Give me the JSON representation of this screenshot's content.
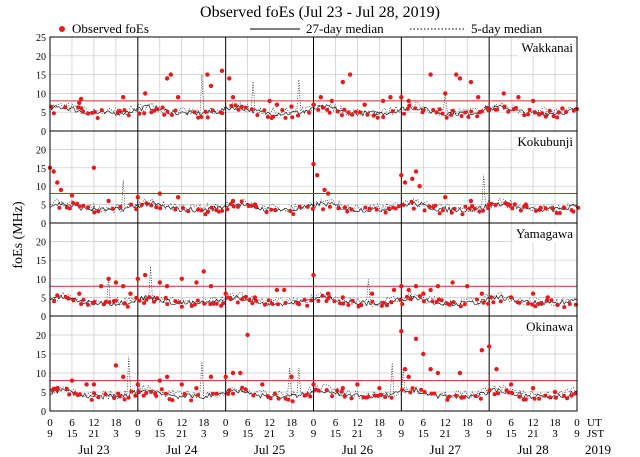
{
  "chart_data": {
    "type": "scatter",
    "title": "Observed foEs (Jul 23 - Jul 28, 2019)",
    "ylabel": "foEs (MHz)",
    "ylim": [
      0,
      25
    ],
    "yticks": [
      0,
      5,
      10,
      15,
      20,
      25
    ],
    "grid": true,
    "legend": [
      {
        "name": "Observed foEs",
        "style": "dot",
        "color": "#e8191e"
      },
      {
        "name": "27-day median",
        "style": "solid-line",
        "color": "#000000"
      },
      {
        "name": "5-day median",
        "style": "dotted-line",
        "color": "#000000"
      }
    ],
    "x_axis": {
      "range_hours_ut": [
        0,
        144
      ],
      "ut_label": "UT",
      "jst_label": "JST",
      "year": "2019",
      "ut_ticks": [
        "0",
        "6",
        "12",
        "18",
        "0",
        "6",
        "12",
        "18",
        "0",
        "6",
        "12",
        "18",
        "0",
        "6",
        "12",
        "18",
        "0",
        "6",
        "12",
        "18",
        "0",
        "6",
        "12",
        "18",
        "0"
      ],
      "jst_ticks": [
        "9",
        "15",
        "21",
        "3",
        "9",
        "15",
        "21",
        "3",
        "9",
        "15",
        "21",
        "3",
        "9",
        "15",
        "21",
        "3",
        "9",
        "15",
        "21",
        "3",
        "9",
        "15",
        "21",
        "3",
        "9"
      ],
      "day_labels": [
        "Jul 23",
        "Jul 24",
        "Jul 25",
        "Jul 26",
        "Jul 27",
        "Jul 28"
      ]
    },
    "reference_line_value": 8,
    "colors": {
      "observed": "#e8191e",
      "reference": "#d42a2a",
      "grid": "#c8c8c8"
    },
    "stations": [
      {
        "name": "Wakkanai",
        "median27": 5.3,
        "median5": 5.6,
        "observed": [
          [
            8,
            7.5
          ],
          [
            8.5,
            8.5
          ],
          [
            20,
            9
          ],
          [
            26,
            10
          ],
          [
            32,
            14
          ],
          [
            33,
            15
          ],
          [
            35,
            9
          ],
          [
            43,
            15
          ],
          [
            44,
            12
          ],
          [
            47,
            16
          ],
          [
            49,
            14
          ],
          [
            50,
            9
          ],
          [
            60,
            8
          ],
          [
            62,
            7
          ],
          [
            66,
            6.5
          ],
          [
            72,
            7
          ],
          [
            74,
            9
          ],
          [
            77,
            8
          ],
          [
            80,
            13
          ],
          [
            82,
            15
          ],
          [
            86,
            7
          ],
          [
            91,
            8
          ],
          [
            93,
            9
          ],
          [
            96,
            9
          ],
          [
            98,
            8
          ],
          [
            104,
            15
          ],
          [
            108,
            10
          ],
          [
            111,
            15
          ],
          [
            112,
            14
          ],
          [
            115,
            13
          ],
          [
            117,
            9
          ],
          [
            124,
            10
          ],
          [
            128,
            9
          ],
          [
            132,
            8
          ],
          [
            140,
            6
          ]
        ]
      },
      {
        "name": "Kokubunji",
        "median27": 4.2,
        "median5": 4.6,
        "observed": [
          [
            0,
            15
          ],
          [
            1,
            14
          ],
          [
            2,
            11
          ],
          [
            3,
            9
          ],
          [
            6,
            7.5
          ],
          [
            12,
            15
          ],
          [
            16,
            6
          ],
          [
            24,
            7
          ],
          [
            30,
            8
          ],
          [
            35,
            7
          ],
          [
            50,
            6
          ],
          [
            56,
            5
          ],
          [
            72,
            16
          ],
          [
            73,
            13
          ],
          [
            75,
            9
          ],
          [
            76,
            8
          ],
          [
            96,
            13
          ],
          [
            97,
            11
          ],
          [
            99,
            12
          ],
          [
            100,
            14
          ],
          [
            101,
            10
          ],
          [
            108,
            7
          ],
          [
            115,
            6
          ],
          [
            120,
            5
          ],
          [
            125,
            5
          ],
          [
            130,
            5
          ]
        ]
      },
      {
        "name": "Yamagawa",
        "median27": 4.0,
        "median5": 4.3,
        "observed": [
          [
            2,
            5.5
          ],
          [
            8,
            6
          ],
          [
            14,
            8
          ],
          [
            16,
            10
          ],
          [
            18,
            9
          ],
          [
            20,
            8
          ],
          [
            22,
            6
          ],
          [
            24,
            10
          ],
          [
            26,
            11
          ],
          [
            30,
            9
          ],
          [
            32,
            8
          ],
          [
            36,
            10
          ],
          [
            40,
            9
          ],
          [
            42,
            12
          ],
          [
            44,
            8
          ],
          [
            48,
            6
          ],
          [
            56,
            5
          ],
          [
            62,
            7
          ],
          [
            64,
            7
          ],
          [
            72,
            11
          ],
          [
            76,
            6
          ],
          [
            80,
            5
          ],
          [
            88,
            6
          ],
          [
            94,
            7
          ],
          [
            96,
            8
          ],
          [
            98,
            7
          ],
          [
            100,
            8
          ],
          [
            102,
            6
          ],
          [
            104,
            7
          ],
          [
            106,
            8
          ],
          [
            110,
            9
          ],
          [
            114,
            8
          ],
          [
            118,
            6
          ],
          [
            126,
            5
          ],
          [
            132,
            6
          ],
          [
            136,
            5
          ]
        ]
      },
      {
        "name": "Okinawa",
        "median27": 4.4,
        "median5": 4.8,
        "observed": [
          [
            2,
            6
          ],
          [
            6,
            8
          ],
          [
            10,
            7
          ],
          [
            12,
            7
          ],
          [
            18,
            12
          ],
          [
            20,
            9
          ],
          [
            24,
            7
          ],
          [
            30,
            8
          ],
          [
            32,
            9
          ],
          [
            36,
            7
          ],
          [
            40,
            6
          ],
          [
            44,
            9
          ],
          [
            48,
            9
          ],
          [
            50,
            10
          ],
          [
            52,
            10
          ],
          [
            54,
            20
          ],
          [
            58,
            7
          ],
          [
            66,
            9
          ],
          [
            72,
            7
          ],
          [
            80,
            6
          ],
          [
            84,
            7
          ],
          [
            90,
            6
          ],
          [
            96,
            21
          ],
          [
            97,
            11
          ],
          [
            98,
            9
          ],
          [
            100,
            19
          ],
          [
            102,
            15
          ],
          [
            104,
            11
          ],
          [
            106,
            10
          ],
          [
            112,
            10
          ],
          [
            118,
            16
          ],
          [
            120,
            17
          ],
          [
            122,
            11
          ],
          [
            126,
            7
          ],
          [
            132,
            6
          ],
          [
            138,
            5
          ]
        ]
      }
    ]
  }
}
